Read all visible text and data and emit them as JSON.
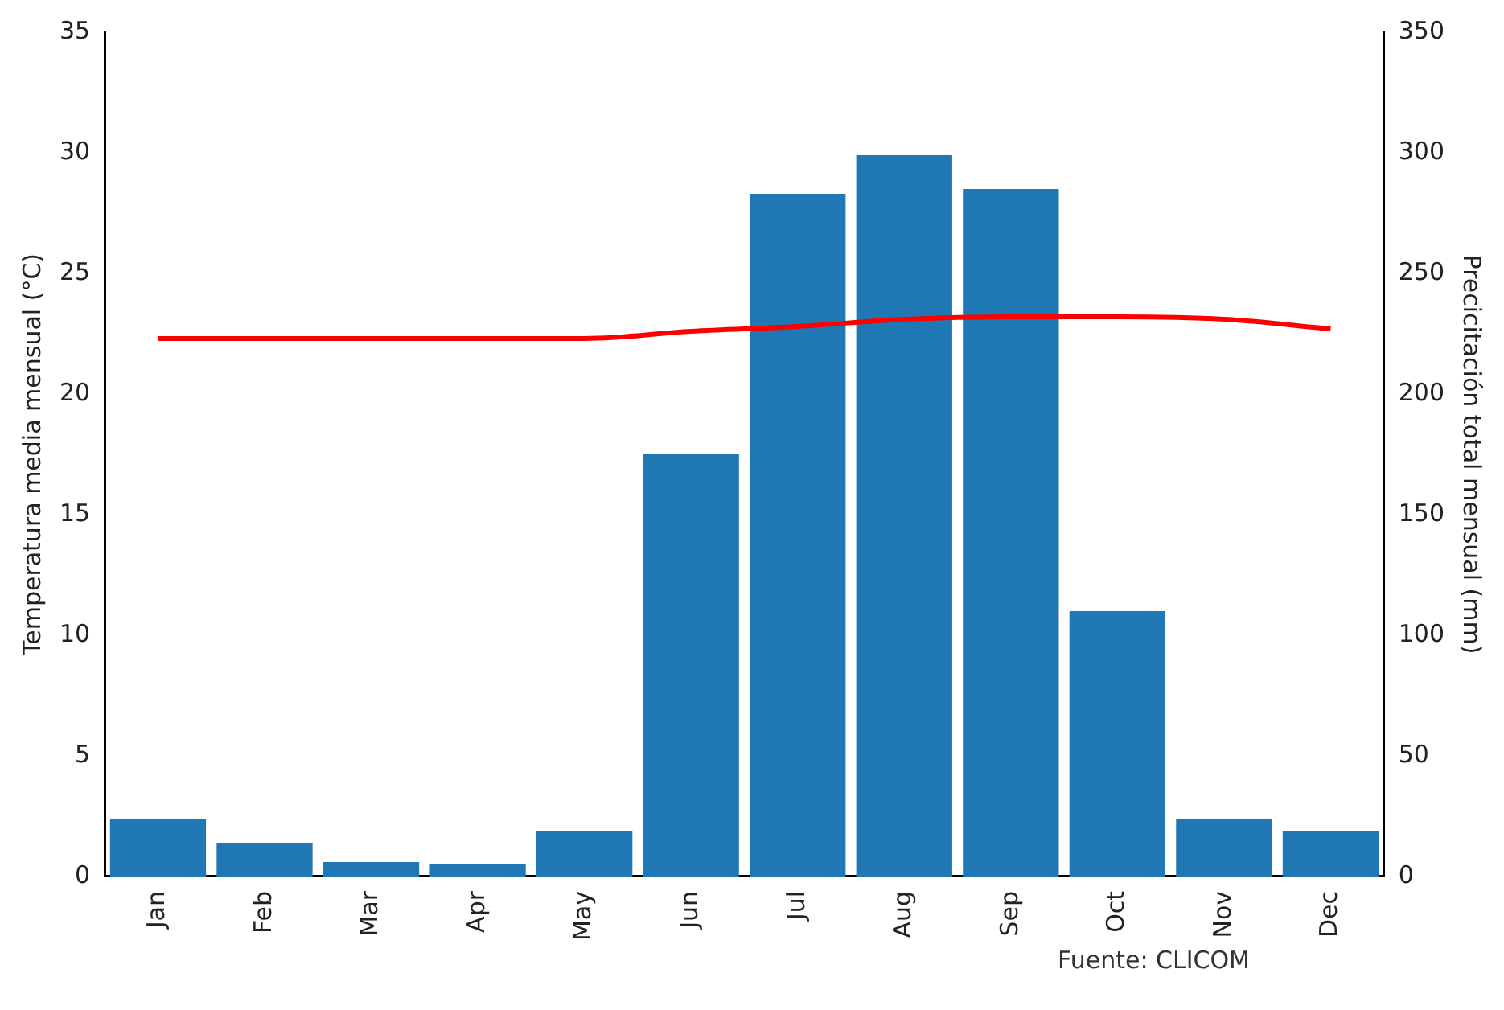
{
  "chart_data": {
    "type": "bar",
    "categories": [
      "Jan",
      "Feb",
      "Mar",
      "Apr",
      "May",
      "Jun",
      "Jul",
      "Aug",
      "Sep",
      "Oct",
      "Nov",
      "Dec"
    ],
    "series": [
      {
        "axis": "y2",
        "color": "#1f77b4",
        "values": [
          24,
          14,
          6,
          5,
          19,
          175,
          283,
          299,
          285,
          110,
          24,
          19
        ]
      },
      {
        "type": "line",
        "axis": "y",
        "color": "#ff0000",
        "values": [
          22.3,
          22.3,
          22.3,
          22.3,
          22.3,
          22.6,
          22.8,
          23.1,
          23.2,
          23.2,
          23.1,
          22.7
        ]
      }
    ],
    "ylabel": "Temperatura media mensual (°C)",
    "y2label": "Precicitación total mensual (mm)",
    "ylim": [
      0,
      35
    ],
    "yticks": [
      0,
      5,
      10,
      15,
      20,
      25,
      30,
      35
    ],
    "y2lim": [
      0,
      350
    ],
    "y2ticks": [
      0,
      50,
      100,
      150,
      200,
      250,
      300,
      350
    ],
    "marker": "none",
    "grid": false,
    "legend": false,
    "annotations": [
      "Fuente: CLICOM"
    ]
  }
}
